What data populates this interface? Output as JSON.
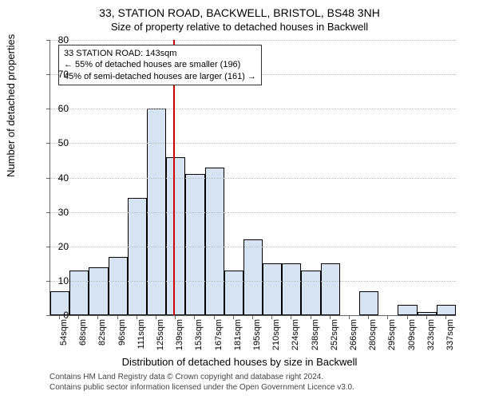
{
  "title_line1": "33, STATION ROAD, BACKWELL, BRISTOL, BS48 3NH",
  "title_line2": "Size of property relative to detached houses in Backwell",
  "ylabel": "Number of detached properties",
  "xlabel": "Distribution of detached houses by size in Backwell",
  "footer_line1": "Contains HM Land Registry data © Crown copyright and database right 2024.",
  "footer_line2": "Contains public sector information licensed under the Open Government Licence v3.0.",
  "chart": {
    "type": "histogram",
    "ylim": [
      0,
      80
    ],
    "ytick_step": 10,
    "bar_fill": "#d6e3f3",
    "bar_empty_fill": "transparent",
    "bar_border": "#000000",
    "grid_color": "#bbbbbb",
    "ref_value_sqm": 143,
    "ref_color": "#cc0000",
    "x_start": 54,
    "x_bin_width": 14,
    "categories": [
      "54sqm",
      "68sqm",
      "82sqm",
      "96sqm",
      "111sqm",
      "125sqm",
      "139sqm",
      "153sqm",
      "167sqm",
      "181sqm",
      "195sqm",
      "210sqm",
      "224sqm",
      "238sqm",
      "252sqm",
      "266sqm",
      "280sqm",
      "295sqm",
      "309sqm",
      "323sqm",
      "337sqm"
    ],
    "values": [
      7,
      13,
      14,
      17,
      34,
      60,
      46,
      41,
      43,
      13,
      22,
      15,
      15,
      13,
      15,
      0,
      7,
      0,
      3,
      1,
      3
    ]
  },
  "annotation": {
    "line1": "33 STATION ROAD: 143sqm",
    "line2": "← 55% of detached houses are smaller (196)",
    "line3": "45% of semi-detached houses are larger (161) →",
    "box_border": "#333333",
    "box_bg": "#ffffff"
  }
}
